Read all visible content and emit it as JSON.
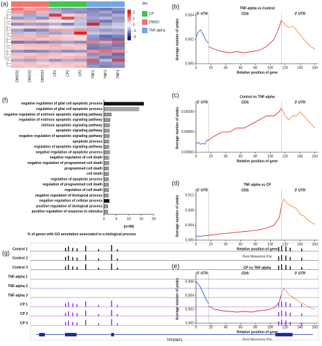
{
  "chart_data": [
    {
      "type": "heatmap",
      "panel": "(a)",
      "columns": [
        "DMSO1",
        "DMSO2",
        "DMSO3",
        "CP1",
        "CP2",
        "CP3",
        "TNF1",
        "TNF2",
        "TNF3"
      ],
      "legend_title": "dex",
      "colorbar_lim": [
        -2.5,
        2.5
      ],
      "legend_ticks": [
        2,
        1,
        0,
        -1,
        -2
      ],
      "groups": [
        {
          "name": "CP",
          "color": "#3ec74a"
        },
        {
          "name": "DMSO",
          "color": "#f07474"
        },
        {
          "name": "TNF-alpha",
          "color": "#72a6e6"
        }
      ],
      "column_groups": [
        1,
        1,
        1,
        0,
        0,
        0,
        2,
        2,
        2
      ],
      "matrix": [
        [
          1.2,
          0.8,
          1.0,
          -0.8,
          -1.0,
          -0.9,
          -1.1,
          -1.2,
          -1.0
        ],
        [
          0.9,
          1.1,
          0.7,
          -0.6,
          -0.9,
          -1.0,
          -1.0,
          -0.8,
          -1.2
        ],
        [
          -0.5,
          -0.8,
          -0.6,
          1.8,
          0.4,
          0.6,
          -0.9,
          -1.0,
          -0.7
        ],
        [
          -0.9,
          -0.7,
          -1.0,
          -0.5,
          1.6,
          -0.6,
          -0.8,
          -0.6,
          -0.9
        ],
        [
          0.5,
          0.6,
          0.4,
          0.3,
          0.2,
          -0.5,
          -1.0,
          -1.2,
          -0.8
        ],
        [
          -1.0,
          -0.8,
          -0.9,
          -0.7,
          -1.1,
          -0.6,
          2.0,
          -0.8,
          -0.5
        ],
        [
          0.3,
          0.4,
          0.5,
          -0.2,
          -0.3,
          -0.4,
          -0.6,
          -0.5,
          -0.4
        ],
        [
          -0.8,
          -1.2,
          -1.0,
          0.9,
          0.8,
          1.0,
          -0.7,
          -0.9,
          -0.8
        ],
        [
          -0.6,
          -0.5,
          -0.7,
          -0.8,
          -0.6,
          2.1,
          -0.5,
          -0.6,
          -0.7
        ],
        [
          0.7,
          0.6,
          0.8,
          0.5,
          0.4,
          0.3,
          -0.9,
          -1.3,
          -1.1
        ],
        [
          0.6,
          0.7,
          0.5,
          0.6,
          0.5,
          0.4,
          -1.0,
          -1.2,
          -1.3
        ],
        [
          -1.2,
          -1.0,
          -1.1,
          -0.9,
          -0.8,
          -1.0,
          1.2,
          0.9,
          1.4
        ],
        [
          0.5,
          0.6,
          0.6,
          0.7,
          0.5,
          0.6,
          -1.1,
          -1.0,
          -1.2
        ],
        [
          0.4,
          0.5,
          0.5,
          0.6,
          0.6,
          0.5,
          -1.2,
          -1.1,
          -1.0
        ],
        [
          -0.9,
          -1.1,
          -1.0,
          -0.8,
          -1.0,
          -0.9,
          1.0,
          1.3,
          1.1
        ],
        [
          0.6,
          0.5,
          0.7,
          0.6,
          0.4,
          0.5,
          -1.0,
          -0.9,
          -1.3
        ],
        [
          0.5,
          0.7,
          0.6,
          0.5,
          0.6,
          0.7,
          -0.8,
          -1.2,
          -1.1
        ],
        [
          -0.7,
          -0.8,
          -0.6,
          -0.9,
          -0.7,
          -0.8,
          1.5,
          -0.6,
          1.7
        ],
        [
          0.5,
          0.6,
          0.4,
          0.5,
          0.6,
          0.5,
          -1.1,
          -1.0,
          -0.9
        ],
        [
          0.6,
          0.5,
          0.6,
          0.4,
          0.5,
          0.6,
          -0.9,
          -1.1,
          -1.0
        ]
      ]
    },
    {
      "type": "line",
      "panel": "(b)",
      "title": "TNF-alpha vs Control",
      "xlabel": "Relative position of gene",
      "ylabel": "Average number of peaks",
      "regions": [
        "5' UTR",
        "CDS",
        "3' UTR"
      ],
      "boundaries": [
        17,
        115
      ],
      "xlim": [
        0,
        165
      ],
      "xticks": [
        0,
        20,
        40,
        60,
        80,
        100,
        120,
        140,
        160
      ],
      "ylim": [
        0,
        0.004
      ],
      "yticks": [
        {
          "value": 0,
          "label": "0.000"
        },
        {
          "value": 0.002,
          "label": "0.002"
        },
        {
          "value": 0.004,
          "label": "0.004"
        }
      ],
      "series": [
        {
          "color": "#3a5fcd",
          "x": [
            0,
            3,
            6,
            9,
            12,
            15,
            17
          ],
          "values": [
            0.0022,
            0.0026,
            0.0028,
            0.0025,
            0.0021,
            0.0018,
            0.0017
          ]
        },
        {
          "color": "#d93030",
          "x": [
            17,
            25,
            35,
            45,
            55,
            65,
            75,
            85,
            95,
            105,
            112,
            115
          ],
          "values": [
            0.0014,
            0.0012,
            0.001,
            0.0009,
            0.001,
            0.0009,
            0.001,
            0.0011,
            0.0014,
            0.002,
            0.003,
            0.0036
          ]
        },
        {
          "color": "#f08a3c",
          "x": [
            115,
            120,
            125,
            130,
            135,
            140,
            145,
            150,
            155,
            160
          ],
          "values": [
            0.0036,
            0.0032,
            0.003,
            0.0031,
            0.0028,
            0.0024,
            0.002,
            0.0017,
            0.0014,
            0.0012
          ]
        }
      ]
    },
    {
      "type": "line",
      "panel": "(c)",
      "title": "Control vs TNF-alpha",
      "xlabel": "Relative position of gene",
      "ylabel": "Average number of peaks",
      "regions": [
        "5' UTR",
        "CDS",
        "3' UTR"
      ],
      "boundaries": [
        17,
        115
      ],
      "xlim": [
        0,
        165
      ],
      "xticks": [
        0,
        20,
        40,
        60,
        80,
        100,
        120,
        140,
        160
      ],
      "ylim": [
        0,
        0.0012
      ],
      "yticks": [
        {
          "value": 0,
          "label": "0.00000"
        },
        {
          "value": 0.0005,
          "label": "0.00050"
        },
        {
          "value": 0.001,
          "label": "0.00100"
        }
      ],
      "series": [
        {
          "color": "#3a5fcd",
          "x": [
            0,
            3,
            6,
            9,
            12,
            15,
            17
          ],
          "values": [
            0.0002,
            0.00025,
            0.0002,
            0.00022,
            0.0002,
            0.0003,
            0.0003
          ]
        },
        {
          "color": "#d93030",
          "x": [
            17,
            25,
            35,
            45,
            55,
            65,
            75,
            85,
            95,
            105,
            112,
            115
          ],
          "values": [
            0.0003,
            0.0004,
            0.0005,
            0.0005,
            0.0006,
            0.0006,
            0.0007,
            0.0008,
            0.0009,
            0.0009,
            0.001,
            0.0011
          ]
        },
        {
          "color": "#f08a3c",
          "x": [
            115,
            120,
            125,
            130,
            135,
            140,
            145,
            150,
            155,
            160
          ],
          "values": [
            0.0011,
            0.0009,
            0.0008,
            0.0009,
            0.0009,
            0.001,
            0.0009,
            0.0008,
            0.0007,
            0.0006
          ]
        }
      ]
    },
    {
      "type": "line",
      "panel": "(d)",
      "title": "TNF-alpha vs CP",
      "xlabel": "Relative position of gene",
      "ylabel": "Average number of peaks",
      "caption": "Peak Metaintron Plot",
      "regions": [
        "5' UTR",
        "CDS",
        "3' UTR"
      ],
      "boundaries": [
        17,
        115
      ],
      "xlim": [
        0,
        165
      ],
      "xticks": [
        0,
        20,
        40,
        60,
        80,
        100,
        120,
        140,
        160
      ],
      "ylim": [
        0,
        0.013
      ],
      "yticks": [
        {
          "value": 0,
          "label": "0.000"
        },
        {
          "value": 0.004,
          "label": "0.004"
        },
        {
          "value": 0.008,
          "label": "0.008"
        },
        {
          "value": 0.012,
          "label": "0.012"
        }
      ],
      "series": [
        {
          "color": "#3a5fcd",
          "x": [
            0,
            3,
            6,
            9,
            12,
            15,
            17
          ],
          "values": [
            0.001,
            0.0011,
            0.001,
            0.0011,
            0.0012,
            0.0012,
            0.0012
          ]
        },
        {
          "color": "#d93030",
          "x": [
            17,
            25,
            35,
            45,
            55,
            65,
            75,
            85,
            95,
            105,
            112,
            115
          ],
          "values": [
            0.0013,
            0.0015,
            0.0017,
            0.0019,
            0.0021,
            0.0023,
            0.0025,
            0.0028,
            0.0032,
            0.004,
            0.006,
            0.009
          ]
        },
        {
          "color": "#f08a3c",
          "x": [
            115,
            118,
            122,
            126,
            130,
            135,
            140,
            145,
            150,
            155,
            160
          ],
          "values": [
            0.009,
            0.011,
            0.01,
            0.0095,
            0.009,
            0.0085,
            0.007,
            0.0065,
            0.0055,
            0.0048,
            0.0042
          ]
        }
      ]
    },
    {
      "type": "line",
      "panel": "(e)",
      "title": "CP vs TNF-alpha",
      "xlabel": "Relative position of gene",
      "ylabel": "Average number of peaks",
      "caption": "Peak Metaintron Plot",
      "regions": [
        "5' UTR",
        "CDS",
        "3' UTR"
      ],
      "boundaries": [
        17,
        115
      ],
      "xlim": [
        0,
        165
      ],
      "xticks": [
        0,
        20,
        40,
        60,
        80,
        100,
        120,
        140,
        160
      ],
      "ylim": [
        0,
        0.007
      ],
      "yticks": [
        {
          "value": 0,
          "label": "0.000"
        },
        {
          "value": 0.002,
          "label": "0.002"
        },
        {
          "value": 0.004,
          "label": "0.004"
        },
        {
          "value": 0.006,
          "label": "0.006"
        }
      ],
      "series": [
        {
          "color": "#3a5fcd",
          "x": [
            0,
            3,
            6,
            9,
            12,
            15,
            17
          ],
          "values": [
            0.006,
            0.0057,
            0.0052,
            0.0045,
            0.0038,
            0.0032,
            0.0028
          ]
        },
        {
          "color": "#d93030",
          "x": [
            17,
            25,
            35,
            45,
            55,
            65,
            75,
            85,
            95,
            105,
            112,
            115
          ],
          "values": [
            0.0025,
            0.002,
            0.0018,
            0.0017,
            0.0016,
            0.0017,
            0.0016,
            0.0018,
            0.0019,
            0.0022,
            0.003,
            0.0042
          ]
        },
        {
          "color": "#f08a3c",
          "x": [
            115,
            118,
            122,
            126,
            130,
            135,
            140,
            145,
            150,
            155,
            160
          ],
          "values": [
            0.0042,
            0.005,
            0.0046,
            0.004,
            0.0038,
            0.0034,
            0.003,
            0.0028,
            0.0024,
            0.0022,
            0.002
          ]
        }
      ]
    },
    {
      "type": "hbar",
      "panel": "(f)",
      "xlabel": "(n=99)",
      "title": "% of genes with GO annotation associated to a biological process",
      "xlim": [
        0,
        20
      ],
      "xticks": [
        0,
        5,
        10,
        15,
        20
      ],
      "categories": [
        "negative regulation of glial cell apoptotic process",
        "regulation of glial cell apoptotic process",
        "negative regulation of extrinsic apoptotic signaling pathway",
        "regulation of extrinsic apoptotic signaling pathway",
        "intrinsic apoptotic signaling pathway",
        "apoptotic signaling pathway",
        "negative regulation of apoptotic signaling pathway",
        "apoptotic process",
        "regulation of apoptotic signaling pathway",
        "negative regulation of apoptotic process",
        "negative regulation of cell death",
        "negative regulation of programmed cell death",
        "programmed cell death",
        "cell death",
        "regulation of apoptotic process",
        "regulation of programmed cell death",
        "regulation of cell death",
        "negative regulation of biological process",
        "negative regulation of cellular process",
        "positive regulation of biological process",
        "positive regulation of response to stimulus"
      ],
      "values": [
        16,
        14,
        3,
        2.5,
        2.3,
        2.2,
        2.2,
        2,
        2,
        2.3,
        2,
        2,
        1.9,
        1.9,
        1.9,
        1.9,
        1.9,
        1.8,
        2.2,
        1.6,
        1.6
      ],
      "colors": [
        "#111111",
        "#aaaaaa",
        "#999999",
        "#999999",
        "#999999",
        "#999999",
        "#999999",
        "#999999",
        "#999999",
        "#999999",
        "#999999",
        "#999999",
        "#999999",
        "#999999",
        "#999999",
        "#999999",
        "#999999",
        "#999999",
        "#111111",
        "#999999",
        "#999999"
      ]
    }
  ],
  "genome_browser": {
    "panel": "(g)",
    "tracks": [
      "Control 1",
      "Control 2",
      "Control 3",
      "TNF-alpha 1",
      "TNF-alpha 2",
      "TNF-alpha 3",
      "CP 1",
      "CP 2",
      "CP 3"
    ],
    "gene": "TP53INP1"
  }
}
